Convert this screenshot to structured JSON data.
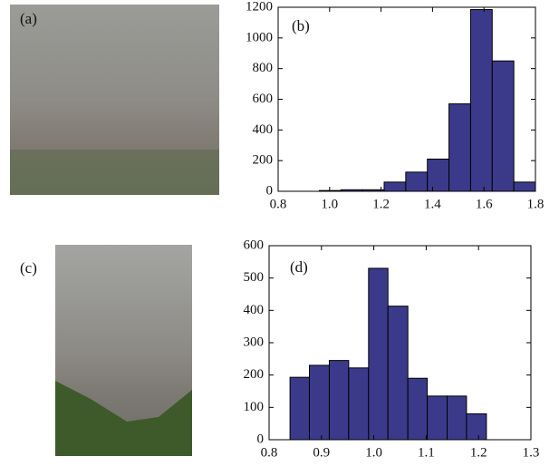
{
  "images": [
    {
      "label": "(a)"
    },
    {
      "label": "(c)"
    }
  ],
  "chart_data": [
    {
      "type": "histogram",
      "annotation": "(b)",
      "bins": [
        0.96,
        1.044,
        1.128,
        1.212,
        1.296,
        1.38,
        1.464,
        1.548,
        1.632,
        1.716,
        1.8
      ],
      "values": [
        5,
        10,
        10,
        60,
        125,
        210,
        570,
        1185,
        850,
        60
      ],
      "color": "#3b3a8a",
      "xlim": [
        0.8,
        1.8
      ],
      "xticks": [
        0.8,
        {
          "value": 1,
          "label": "1.0"
        },
        1.2,
        1.4,
        1.6,
        1.8
      ],
      "ylim": [
        0,
        1200
      ],
      "yticks": [
        0,
        200,
        400,
        600,
        800,
        1000,
        1200
      ]
    },
    {
      "type": "histogram",
      "annotation": "(d)",
      "bins": [
        0.84,
        0.877,
        0.915,
        0.952,
        0.99,
        1.027,
        1.065,
        1.102,
        1.14,
        1.177,
        1.215
      ],
      "values": [
        193,
        230,
        245,
        222,
        530,
        413,
        190,
        135,
        135,
        80
      ],
      "color": "#3b3a8a",
      "xlim": [
        0.8,
        1.3
      ],
      "xticks": [
        0.8,
        0.9,
        {
          "value": 1,
          "label": "1.0"
        },
        1.1,
        1.2,
        1.3
      ],
      "ylim": [
        0,
        600
      ],
      "yticks": [
        0,
        100,
        200,
        300,
        400,
        500,
        600
      ]
    }
  ]
}
